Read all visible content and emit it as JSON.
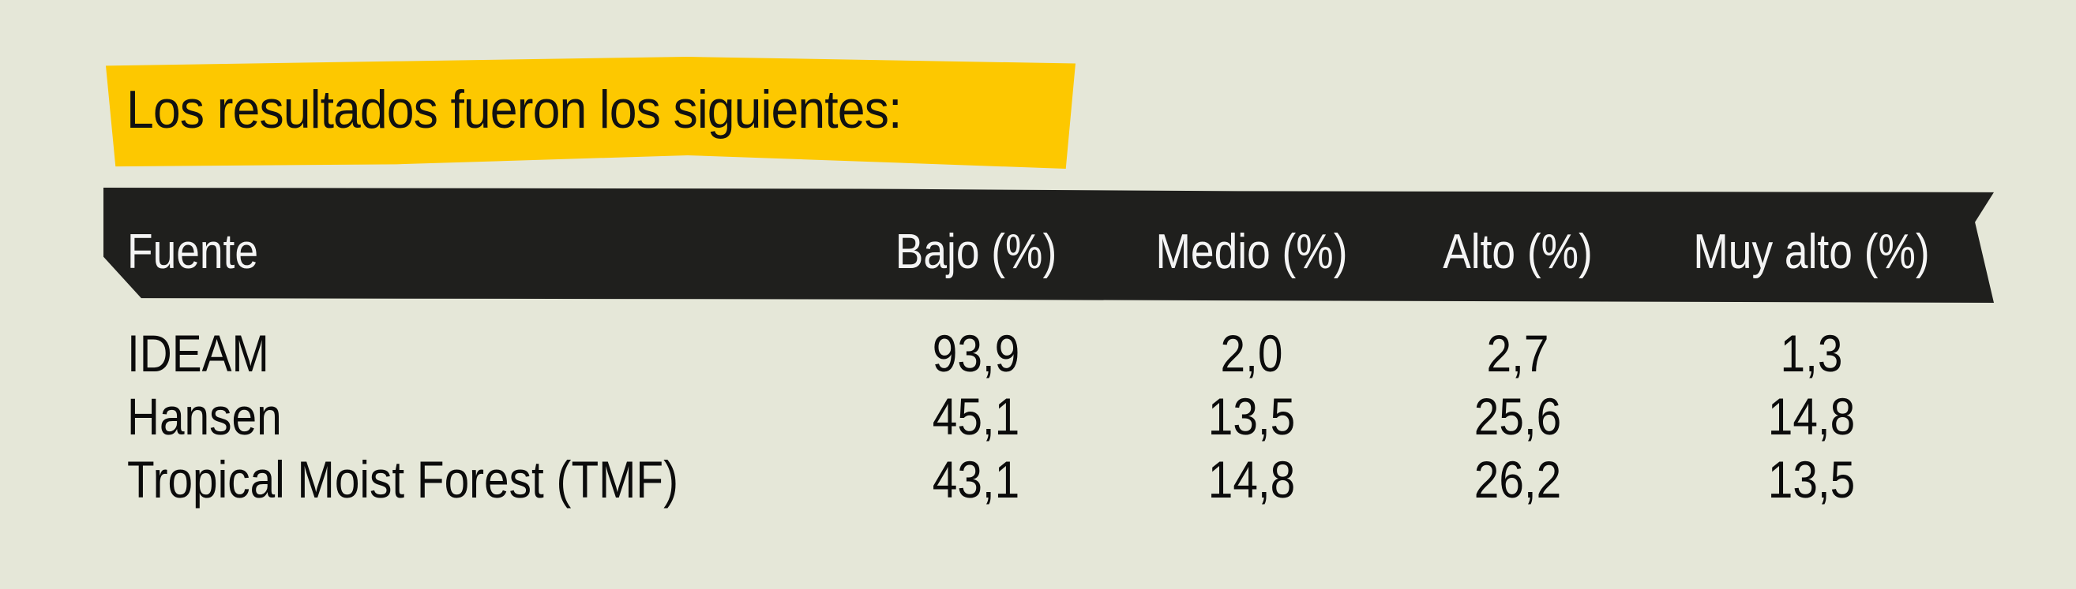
{
  "title": "Los resultados fueron los siguientes:",
  "table": {
    "headers": [
      "Fuente",
      "Bajo (%)",
      "Medio (%)",
      "Alto (%)",
      "Muy alto (%)"
    ],
    "rows": [
      [
        "IDEAM",
        "93,9",
        "2,0",
        "2,7",
        "1,3"
      ],
      [
        "Hansen",
        "45,1",
        "13,5",
        "25,6",
        "14,8"
      ],
      [
        "Tropical Moist Forest (TMF)",
        "43,1",
        "14,8",
        "26,2",
        "13,5"
      ]
    ]
  },
  "colors": {
    "background": "#e5e7d8",
    "highlight": "#fdc800",
    "header": "#1f1f1d"
  }
}
